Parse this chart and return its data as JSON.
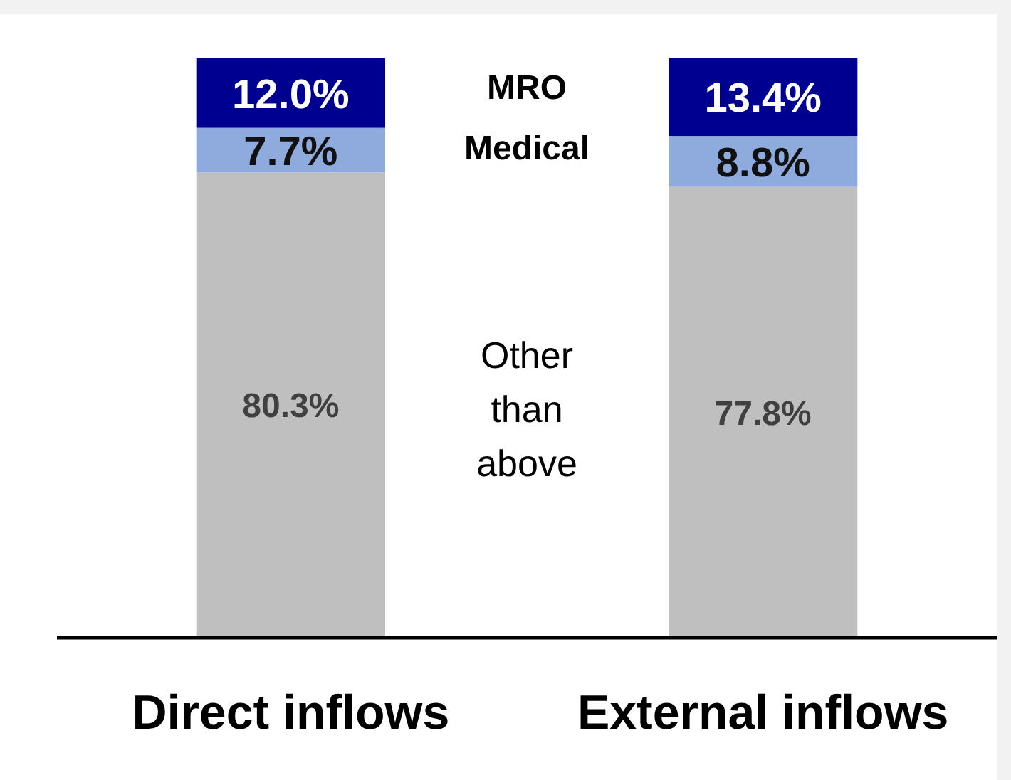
{
  "chart_data": {
    "type": "bar",
    "stacked": true,
    "categories": [
      "Direct inflows",
      "External inflows"
    ],
    "series": [
      {
        "name": "Other than above",
        "color": "#bfbfbf",
        "values": [
          80.3,
          77.8
        ],
        "value_labels": [
          "80.3%",
          "77.8%"
        ]
      },
      {
        "name": "Medical",
        "color": "#8faadc",
        "values": [
          7.7,
          8.8
        ],
        "value_labels": [
          "7.7%",
          "8.8%"
        ]
      },
      {
        "name": "MRO",
        "color": "#000090",
        "values": [
          12.0,
          13.4
        ],
        "value_labels": [
          "12.0%",
          "13.4%"
        ]
      }
    ]
  }
}
